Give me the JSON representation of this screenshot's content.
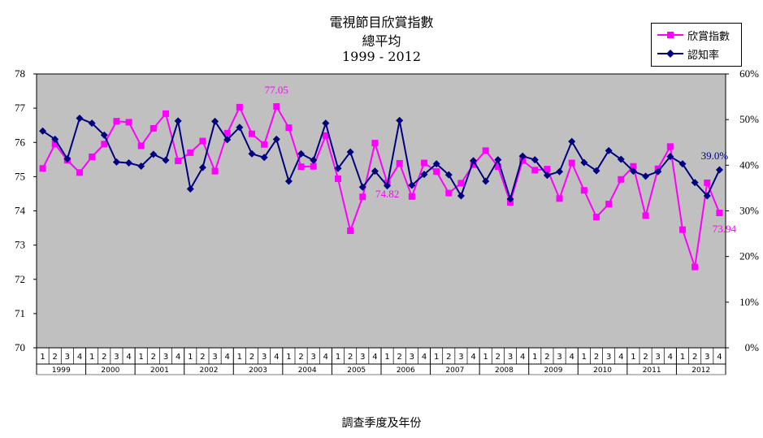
{
  "title_lines": [
    "電視節目欣賞指數",
    "總平均",
    "1999  -  2012"
  ],
  "legend": {
    "appreciation": "欣賞指數",
    "awareness": "認知率"
  },
  "colors": {
    "appreciation": "#ff00ff",
    "awareness": "#000080",
    "plot_bg": "#c0c0c0"
  },
  "chart_data": {
    "type": "line",
    "title": "電視節目欣賞指數 總平均 1999 - 2012",
    "xlabel": "調查季度及年份",
    "ylabel_left": "",
    "ylabel_right": "",
    "ylim_left": [
      70,
      78
    ],
    "ylim_right": [
      0,
      60
    ],
    "yticks_left": [
      "70",
      "71",
      "72",
      "73",
      "74",
      "75",
      "76",
      "77",
      "78"
    ],
    "yticks_right": [
      "0%",
      "10%",
      "20%",
      "30%",
      "40%",
      "50%",
      "60%"
    ],
    "grid": false,
    "legend_position": "top-right",
    "years": [
      "1999",
      "2000",
      "2001",
      "2002",
      "2003",
      "2004",
      "2005",
      "2006",
      "2007",
      "2008",
      "2009",
      "2010",
      "2011",
      "2012"
    ],
    "quarters": [
      "1",
      "2",
      "3",
      "4"
    ],
    "series": [
      {
        "name": "欣賞指數",
        "axis": "left",
        "marker": "square",
        "values": [
          75.24,
          75.95,
          75.48,
          75.12,
          75.58,
          75.95,
          76.62,
          76.59,
          75.9,
          76.41,
          76.84,
          75.46,
          75.7,
          76.04,
          75.16,
          76.27,
          77.03,
          76.25,
          75.94,
          77.05,
          76.43,
          75.29,
          75.3,
          76.2,
          74.94,
          73.42,
          74.41,
          75.98,
          74.82,
          75.39,
          74.42,
          75.4,
          75.15,
          74.52,
          74.81,
          75.35,
          75.76,
          75.29,
          74.25,
          75.47,
          75.19,
          75.22,
          74.36,
          75.4,
          74.6,
          73.82,
          74.2,
          74.92,
          75.3,
          73.86,
          75.23,
          75.88,
          73.45,
          72.36,
          74.82,
          73.94
        ],
        "labels": [
          {
            "index": 19,
            "text": "77.05"
          },
          {
            "index": 28,
            "text": "74.82"
          },
          {
            "index": 55,
            "text": "73.94"
          }
        ]
      },
      {
        "name": "認知率",
        "axis": "right",
        "marker": "diamond",
        "values": [
          47.5,
          45.7,
          41.4,
          50.3,
          49.2,
          46.6,
          40.7,
          40.5,
          39.8,
          42.4,
          41.1,
          49.7,
          34.8,
          39.5,
          49.6,
          45.6,
          48.3,
          42.5,
          41.7,
          45.7,
          36.5,
          42.5,
          41.1,
          49.2,
          39.3,
          42.9,
          35.2,
          38.7,
          35.5,
          49.8,
          35.6,
          38.0,
          40.3,
          37.9,
          33.3,
          41.0,
          36.5,
          41.2,
          32.6,
          42.0,
          41.2,
          37.8,
          38.6,
          45.2,
          40.6,
          38.8,
          43.2,
          41.3,
          38.7,
          37.6,
          38.6,
          41.9,
          40.3,
          36.2,
          33.3,
          39.0
        ],
        "labels": [
          {
            "index": 55,
            "text": "39.0%"
          }
        ]
      }
    ]
  }
}
